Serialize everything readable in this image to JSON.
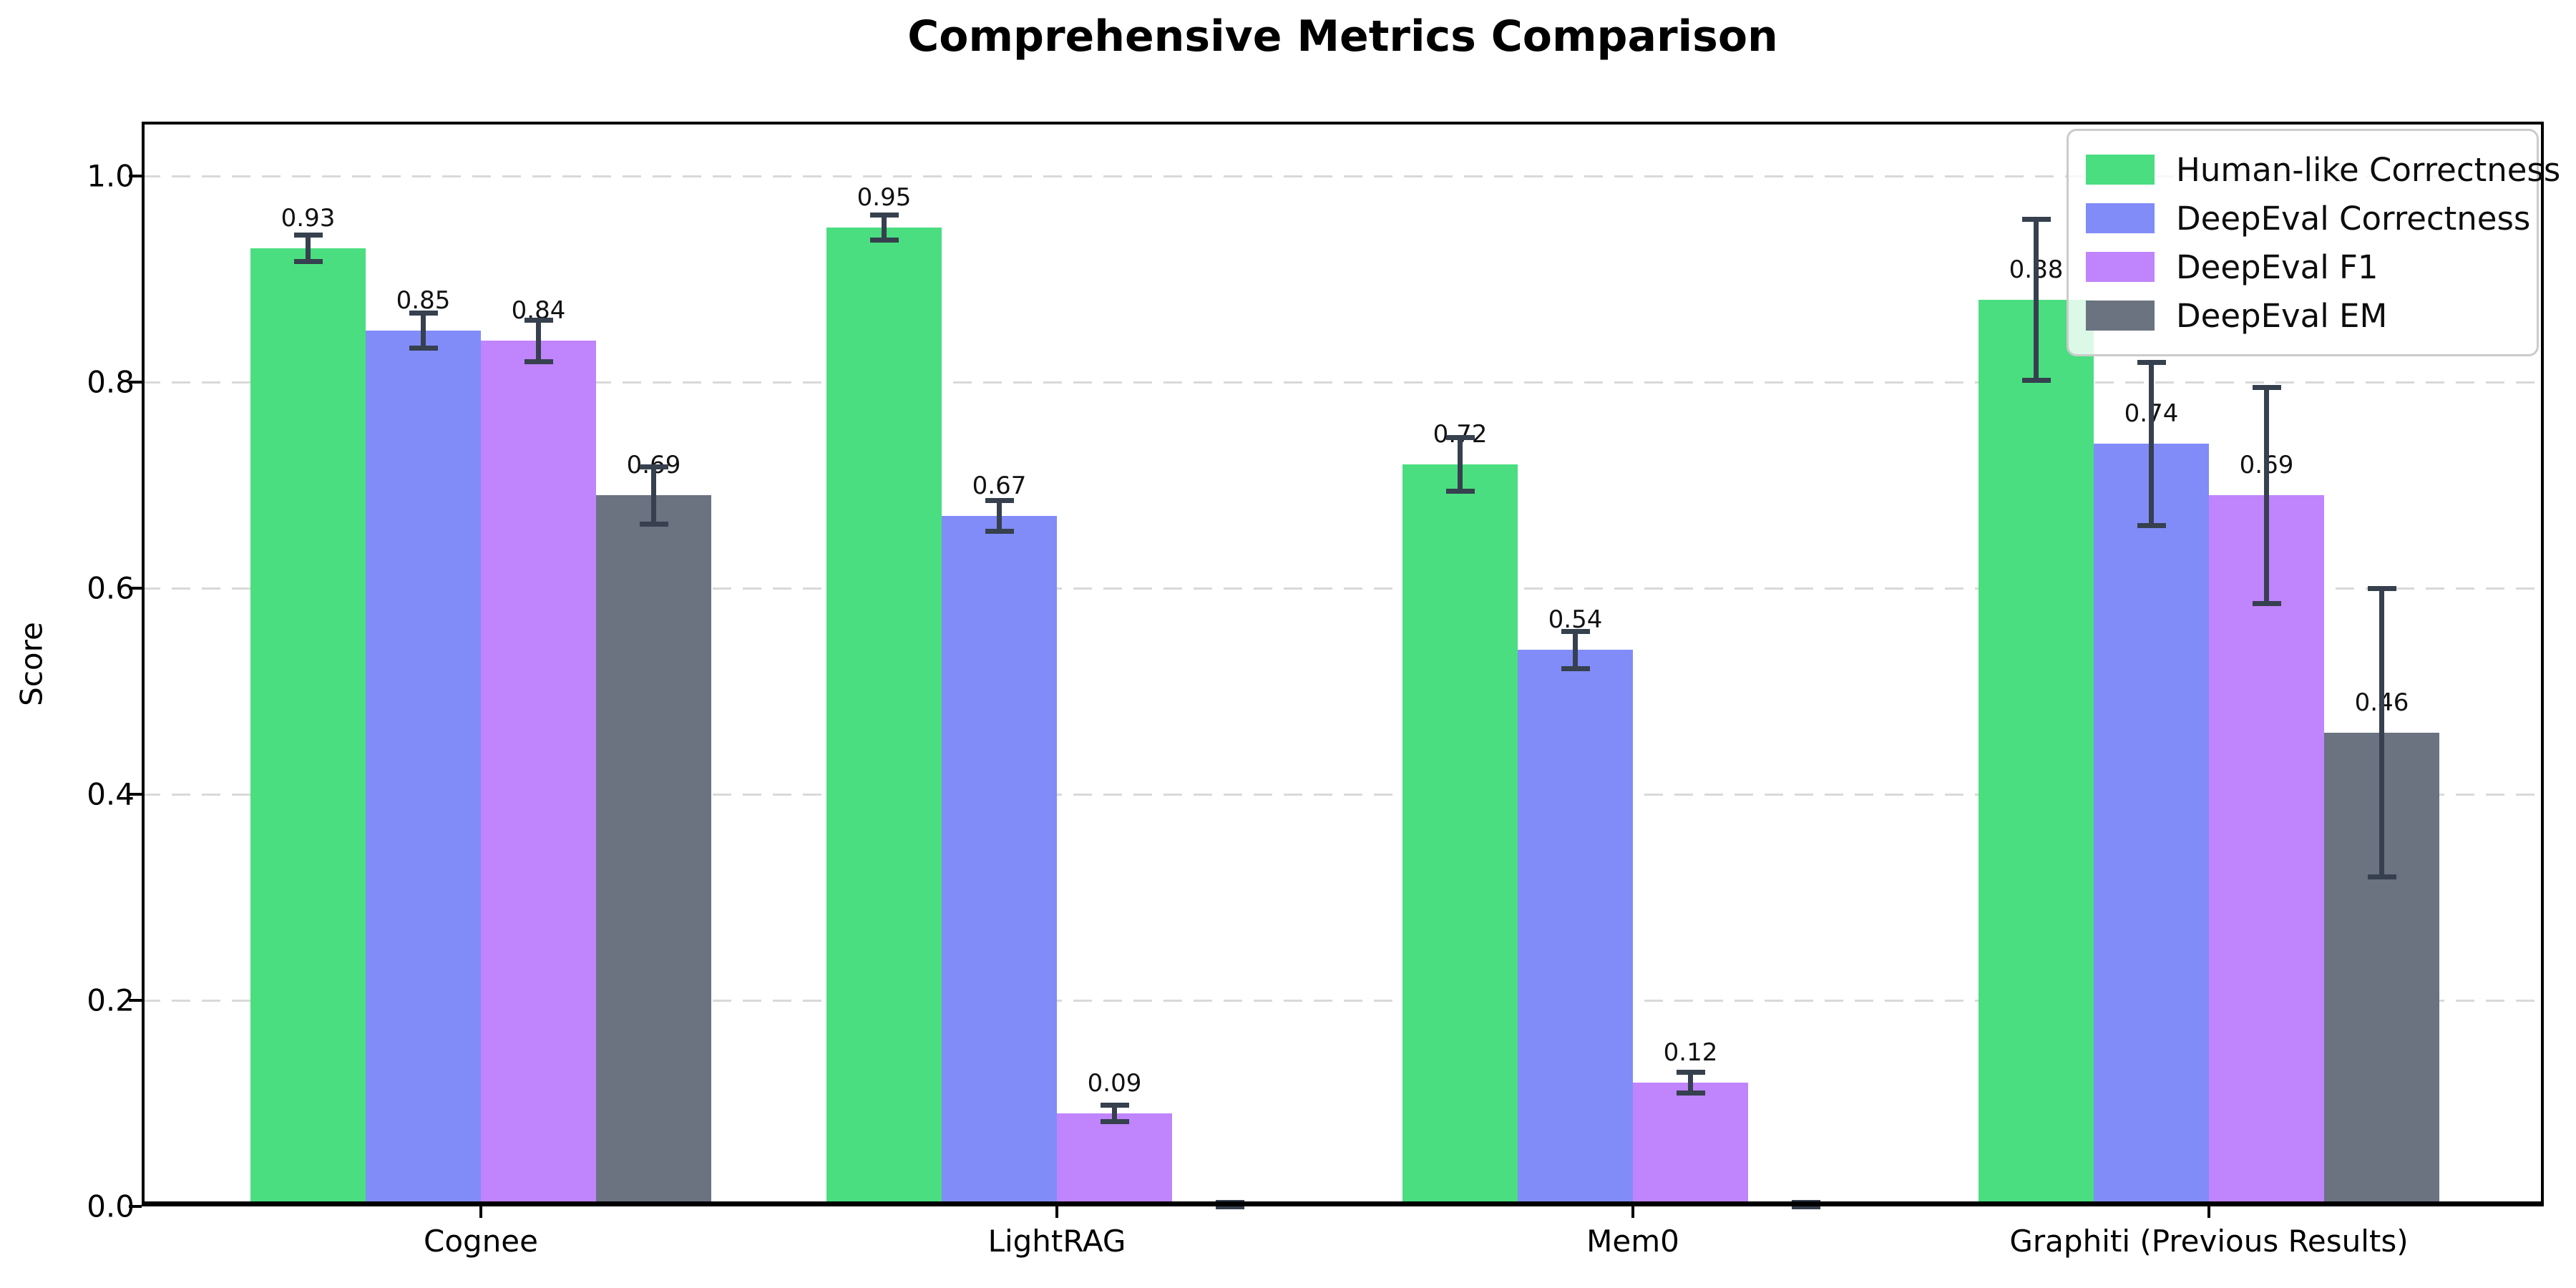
{
  "title": "Comprehensive Metrics Comparison",
  "chart_data": {
    "type": "bar",
    "title": "Comprehensive Metrics Comparison",
    "xlabel": "",
    "ylabel": "Score",
    "categories": [
      "Cognee",
      "LightRAG",
      "Mem0",
      "Graphiti (Previous Results)"
    ],
    "series": [
      {
        "name": "Human-like Correctness",
        "color": "#4ade80",
        "values": [
          0.93,
          0.95,
          0.72,
          0.88
        ],
        "errors": [
          0.013,
          0.012,
          0.026,
          0.078
        ],
        "labels": [
          "0.93",
          "0.95",
          "0.72",
          "0.88"
        ]
      },
      {
        "name": "DeepEval Correctness",
        "color": "#818cf8",
        "values": [
          0.85,
          0.67,
          0.54,
          0.74
        ],
        "errors": [
          0.017,
          0.015,
          0.018,
          0.079
        ],
        "labels": [
          "0.85",
          "0.67",
          "0.54",
          "0.74"
        ]
      },
      {
        "name": "DeepEval F1",
        "color": "#c084fc",
        "values": [
          0.84,
          0.09,
          0.12,
          0.69
        ],
        "errors": [
          0.02,
          0.008,
          0.01,
          0.105
        ],
        "labels": [
          "0.84",
          "0.09",
          "0.12",
          "0.69"
        ]
      },
      {
        "name": "DeepEval EM",
        "color": "#6b7280",
        "values": [
          0.69,
          0.0,
          0.0,
          0.46
        ],
        "errors": [
          0.028,
          0.004,
          0.004,
          0.14
        ],
        "labels": [
          "0.69",
          "",
          "",
          "0.46"
        ]
      }
    ],
    "yticks": [
      "0.0",
      "0.2",
      "0.4",
      "0.6",
      "0.8",
      "1.0"
    ],
    "ylim": [
      0,
      1.053
    ],
    "grid": true,
    "grid_style": "dashed",
    "legend_position": "upper right",
    "errorbar_color": "#36404e",
    "axis_color": "#000000",
    "gridline_color": "#d9d9d9"
  }
}
